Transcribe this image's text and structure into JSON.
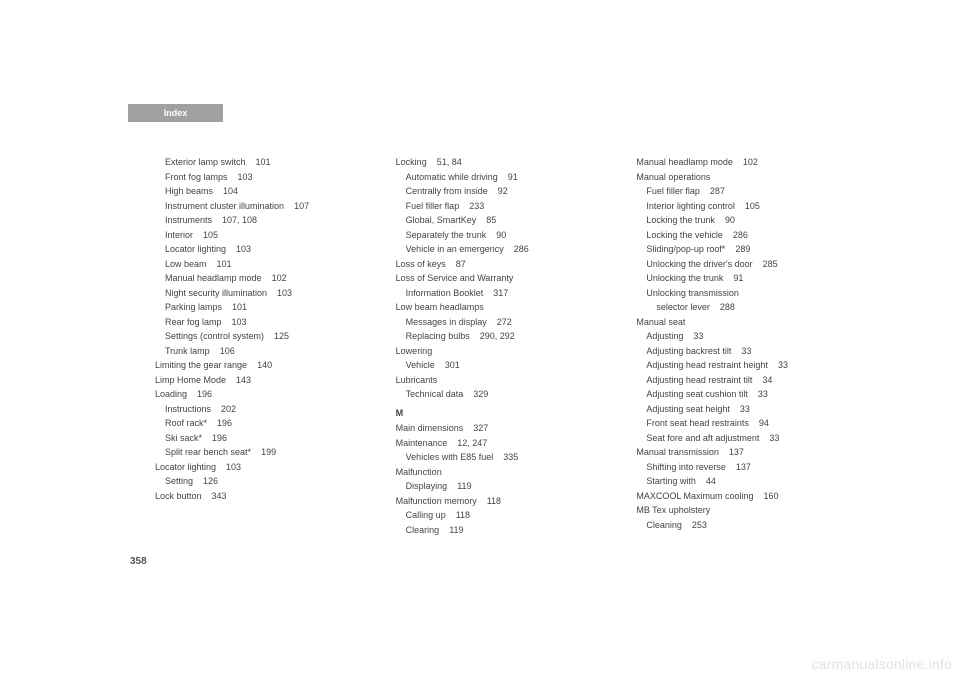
{
  "header": {
    "label": "Index"
  },
  "pageNumber": "358",
  "watermark": "carmanualsonline.info",
  "col1": [
    {
      "text": "Exterior lamp switch",
      "pg": "101",
      "indent": 1
    },
    {
      "text": "Front fog lamps",
      "pg": "103",
      "indent": 1
    },
    {
      "text": "High beams",
      "pg": "104",
      "indent": 1
    },
    {
      "text": "Instrument cluster illumination",
      "pg": "107",
      "indent": 1
    },
    {
      "text": "Instruments",
      "pg": "107, 108",
      "indent": 1
    },
    {
      "text": "Interior",
      "pg": "105",
      "indent": 1
    },
    {
      "text": "Locator lighting",
      "pg": "103",
      "indent": 1
    },
    {
      "text": "Low beam",
      "pg": "101",
      "indent": 1
    },
    {
      "text": "Manual headlamp mode",
      "pg": "102",
      "indent": 1
    },
    {
      "text": "Night security illumination",
      "pg": "103",
      "indent": 1
    },
    {
      "text": "Parking lamps",
      "pg": "101",
      "indent": 1
    },
    {
      "text": "Rear fog lamp",
      "pg": "103",
      "indent": 1
    },
    {
      "text": "Settings (control system)",
      "pg": "125",
      "indent": 1
    },
    {
      "text": "Trunk lamp",
      "pg": "106",
      "indent": 1
    },
    {
      "text": "Limiting the gear range",
      "pg": "140",
      "indent": 0
    },
    {
      "text": "Limp Home Mode",
      "pg": "143",
      "indent": 0
    },
    {
      "text": "Loading",
      "pg": "196",
      "indent": 0
    },
    {
      "text": "Instructions",
      "pg": "202",
      "indent": 1
    },
    {
      "text": "Roof rack*",
      "pg": "196",
      "indent": 1
    },
    {
      "text": "Ski sack*",
      "pg": "196",
      "indent": 1
    },
    {
      "text": "Split rear bench seat*",
      "pg": "199",
      "indent": 1
    },
    {
      "text": "Locator lighting",
      "pg": "103",
      "indent": 0
    },
    {
      "text": "Setting",
      "pg": "126",
      "indent": 1
    },
    {
      "text": "Lock button",
      "pg": "343",
      "indent": 0
    }
  ],
  "col2": [
    {
      "text": "Locking",
      "pg": "51, 84",
      "indent": 0
    },
    {
      "text": "Automatic while driving",
      "pg": "91",
      "indent": 1
    },
    {
      "text": "Centrally from inside",
      "pg": "92",
      "indent": 1
    },
    {
      "text": "Fuel filler flap",
      "pg": "233",
      "indent": 1
    },
    {
      "text": "Global, SmartKey",
      "pg": "85",
      "indent": 1
    },
    {
      "text": "Separately the trunk",
      "pg": "90",
      "indent": 1
    },
    {
      "text": "Vehicle in an emergency",
      "pg": "286",
      "indent": 1
    },
    {
      "text": "Loss of keys",
      "pg": "87",
      "indent": 0
    },
    {
      "text": "Loss of Service and Warranty",
      "pg": "",
      "indent": 0
    },
    {
      "text": "Information Booklet",
      "pg": "317",
      "indent": 1
    },
    {
      "text": "Low beam headlamps",
      "pg": "",
      "indent": 0
    },
    {
      "text": "Messages in display",
      "pg": "272",
      "indent": 1
    },
    {
      "text": "Replacing bulbs",
      "pg": "290, 292",
      "indent": 1
    },
    {
      "text": "Lowering",
      "pg": "",
      "indent": 0
    },
    {
      "text": "Vehicle",
      "pg": "301",
      "indent": 1
    },
    {
      "text": "Lubricants",
      "pg": "",
      "indent": 0
    },
    {
      "text": "Technical data",
      "pg": "329",
      "indent": 1
    },
    {
      "letter": "M"
    },
    {
      "text": "Main dimensions",
      "pg": "327",
      "indent": 0
    },
    {
      "text": "Maintenance",
      "pg": "12, 247",
      "indent": 0
    },
    {
      "text": "Vehicles with E85 fuel",
      "pg": "335",
      "indent": 1
    },
    {
      "text": "Malfunction",
      "pg": "",
      "indent": 0
    },
    {
      "text": "Displaying",
      "pg": "119",
      "indent": 1
    },
    {
      "text": "Malfunction memory",
      "pg": "118",
      "indent": 0
    },
    {
      "text": "Calling up",
      "pg": "118",
      "indent": 1
    },
    {
      "text": "Clearing",
      "pg": "119",
      "indent": 1
    }
  ],
  "col3": [
    {
      "text": "Manual headlamp mode",
      "pg": "102",
      "indent": 0
    },
    {
      "text": "Manual operations",
      "pg": "",
      "indent": 0
    },
    {
      "text": "Fuel filler flap",
      "pg": "287",
      "indent": 1
    },
    {
      "text": "Interior lighting control",
      "pg": "105",
      "indent": 1
    },
    {
      "text": "Locking the trunk",
      "pg": "90",
      "indent": 1
    },
    {
      "text": "Locking the vehicle",
      "pg": "286",
      "indent": 1
    },
    {
      "text": "Sliding/pop-up roof*",
      "pg": "289",
      "indent": 1
    },
    {
      "text": "Unlocking the driver's door",
      "pg": "285",
      "indent": 1
    },
    {
      "text": "Unlocking the trunk",
      "pg": "91",
      "indent": 1
    },
    {
      "text": "Unlocking transmission",
      "pg": "",
      "indent": 1
    },
    {
      "text": "selector lever",
      "pg": "288",
      "indent": 2
    },
    {
      "text": "Manual seat",
      "pg": "",
      "indent": 0
    },
    {
      "text": "Adjusting",
      "pg": "33",
      "indent": 1
    },
    {
      "text": "Adjusting backrest tilt",
      "pg": "33",
      "indent": 1
    },
    {
      "text": "Adjusting head restraint height",
      "pg": "33",
      "indent": 1
    },
    {
      "text": "Adjusting head restraint tilt",
      "pg": "34",
      "indent": 1
    },
    {
      "text": "Adjusting seat cushion tilt",
      "pg": "33",
      "indent": 1
    },
    {
      "text": "Adjusting seat height",
      "pg": "33",
      "indent": 1
    },
    {
      "text": "Front seat head restraints",
      "pg": "94",
      "indent": 1
    },
    {
      "text": "Seat fore and aft adjustment",
      "pg": "33",
      "indent": 1
    },
    {
      "text": "Manual transmission",
      "pg": "137",
      "indent": 0
    },
    {
      "text": "Shifting into reverse",
      "pg": "137",
      "indent": 1
    },
    {
      "text": "Starting with",
      "pg": "44",
      "indent": 1
    },
    {
      "text": "MAXCOOL Maximum cooling",
      "pg": "160",
      "indent": 0
    },
    {
      "text": "MB Tex upholstery",
      "pg": "",
      "indent": 0
    },
    {
      "text": "Cleaning",
      "pg": "253",
      "indent": 1
    }
  ]
}
